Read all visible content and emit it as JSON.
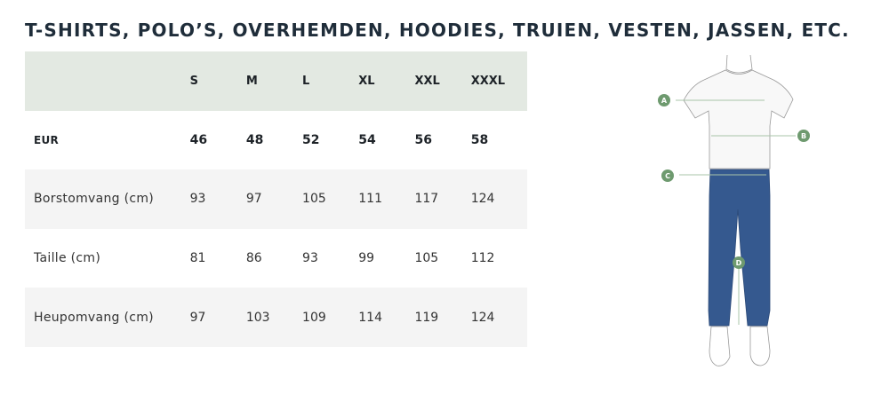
{
  "title": "T-SHIRTS, POLO’S, OVERHEMDEN, HOODIES, TRUIEN, VESTEN, JASSEN, ETC.",
  "table": {
    "header": [
      "",
      "S",
      "M",
      "L",
      "XL",
      "XXL",
      "XXXL"
    ],
    "rows": [
      {
        "label": "EUR",
        "values": [
          "46",
          "48",
          "52",
          "54",
          "56",
          "58"
        ]
      },
      {
        "label": "Borstomvang (cm)",
        "values": [
          "93",
          "97",
          "105",
          "111",
          "117",
          "124"
        ]
      },
      {
        "label": "Taille (cm)",
        "values": [
          "81",
          "86",
          "93",
          "99",
          "105",
          "112"
        ]
      },
      {
        "label": "Heupomvang (cm)",
        "values": [
          "97",
          "103",
          "109",
          "114",
          "119",
          "124"
        ]
      }
    ]
  },
  "figure": {
    "markers": [
      "A",
      "B",
      "C",
      "D"
    ],
    "colors": {
      "marker": "#6e9a6f",
      "jeans": "#35598f",
      "header_bg": "#e3e9e2",
      "stripe_bg": "#f4f4f4"
    }
  }
}
